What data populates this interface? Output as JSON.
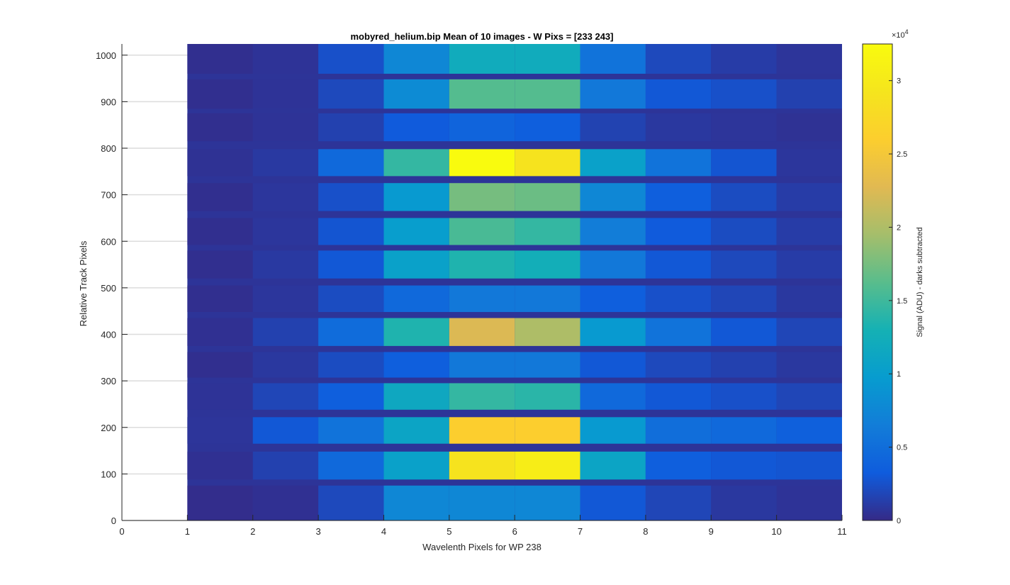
{
  "chart_data": {
    "type": "heatmap",
    "title": "mobyred_helium.bip  Mean of 10 images - W Pixs = [233  243]",
    "xlabel": "Wavelenth Pixels for WP 238",
    "ylabel": "Relative Track Pixels",
    "colorbar_label": "Signal (ADU) - darks subtracted",
    "colorbar_exponent": "×10",
    "colorbar_exponent_power": "4",
    "xlim": [
      0,
      11
    ],
    "ylim": [
      0,
      1024
    ],
    "clim": [
      0,
      32500
    ],
    "x_ticks": [
      "0",
      "1",
      "2",
      "3",
      "4",
      "5",
      "6",
      "7",
      "8",
      "9",
      "10",
      "11"
    ],
    "y_ticks": [
      "0",
      "100",
      "200",
      "300",
      "400",
      "500",
      "600",
      "700",
      "800",
      "900",
      "1000"
    ],
    "colorbar_ticks": [
      "0",
      "0.5",
      "1",
      "1.5",
      "2",
      "2.5",
      "3"
    ],
    "grid": "horizontal",
    "colormap": "parula",
    "columns": [
      1,
      2,
      3,
      4,
      5,
      6,
      7,
      8,
      9,
      10
    ],
    "bands": [
      {
        "y0": 0,
        "y1": 75,
        "values": [
          200,
          400,
          2000,
          7500,
          7500,
          7500,
          3000,
          1800,
          900,
          600
        ]
      },
      {
        "y0": 88,
        "y1": 148,
        "values": [
          400,
          1500,
          4500,
          10500,
          29000,
          30500,
          11000,
          3500,
          3000,
          2800
        ]
      },
      {
        "y0": 165,
        "y1": 222,
        "values": [
          700,
          3000,
          5500,
          11000,
          26000,
          26000,
          9500,
          5000,
          4500,
          3600
        ]
      },
      {
        "y0": 238,
        "y1": 295,
        "values": [
          600,
          1800,
          3500,
          11500,
          14500,
          14000,
          4500,
          3000,
          2500,
          1800
        ]
      },
      {
        "y0": 307,
        "y1": 362,
        "values": [
          300,
          900,
          2200,
          3500,
          6000,
          6000,
          3000,
          2000,
          1500,
          900
        ]
      },
      {
        "y0": 375,
        "y1": 435,
        "values": [
          400,
          1500,
          4800,
          13500,
          22500,
          20000,
          9500,
          5500,
          3000,
          1800
        ]
      },
      {
        "y0": 448,
        "y1": 505,
        "values": [
          300,
          800,
          2200,
          4500,
          6000,
          6000,
          3500,
          2500,
          1800,
          900
        ]
      },
      {
        "y0": 520,
        "y1": 580,
        "values": [
          300,
          1000,
          3000,
          10500,
          13500,
          12500,
          6000,
          3000,
          2000,
          1200
        ]
      },
      {
        "y0": 592,
        "y1": 650,
        "values": [
          300,
          800,
          2800,
          10000,
          15500,
          14500,
          6500,
          3200,
          2200,
          1200
        ]
      },
      {
        "y0": 665,
        "y1": 725,
        "values": [
          300,
          800,
          2500,
          9500,
          17500,
          17000,
          7500,
          3500,
          2200,
          1200
        ]
      },
      {
        "y0": 740,
        "y1": 798,
        "values": [
          500,
          1000,
          4500,
          14500,
          32500,
          29000,
          10500,
          5500,
          2800,
          800
        ]
      },
      {
        "y0": 815,
        "y1": 875,
        "values": [
          300,
          600,
          1500,
          3200,
          4000,
          3500,
          1600,
          900,
          700,
          500
        ]
      },
      {
        "y0": 885,
        "y1": 948,
        "values": [
          300,
          600,
          2000,
          8000,
          16000,
          16000,
          6000,
          3000,
          2500,
          1500
        ]
      },
      {
        "y0": 960,
        "y1": 1024,
        "values": [
          300,
          600,
          2500,
          7500,
          12000,
          12000,
          5500,
          2000,
          1200,
          700
        ]
      }
    ]
  }
}
